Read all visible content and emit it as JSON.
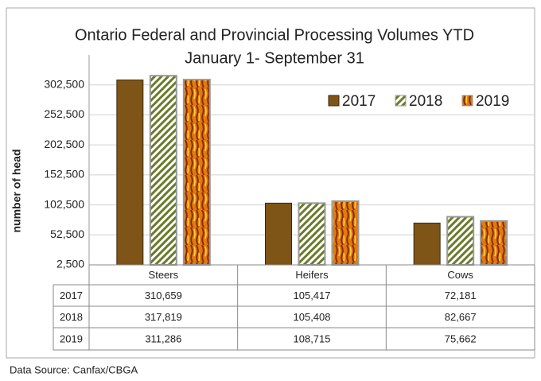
{
  "chart_data": {
    "type": "bar",
    "title": "Ontario Federal and Provincial  Processing Volumes YTD",
    "subtitle": "January 1- September 31",
    "y_label": "number of head",
    "source": "Data Source: Canfax/CBGA",
    "categories": [
      "Steers",
      "Heifers",
      "Cows"
    ],
    "series": [
      {
        "name": "2017",
        "color": "#7f5417",
        "values": [
          310659,
          105417,
          72181
        ],
        "value_labels": [
          "310,659",
          "105,417",
          "72,181"
        ]
      },
      {
        "name": "2018",
        "color": "#6b7a2a",
        "values": [
          317819,
          105408,
          82667
        ],
        "value_labels": [
          "317,819",
          "105,408",
          "82,667"
        ]
      },
      {
        "name": "2019",
        "color": "#e07b10",
        "values": [
          311286,
          108715,
          75662
        ],
        "value_labels": [
          "311,286",
          "108,715",
          "75,662"
        ]
      }
    ],
    "ylim": [
      2500,
      352500
    ],
    "yticks": [
      {
        "value": 2500,
        "label": "2,500"
      },
      {
        "value": 52500,
        "label": "52,500"
      },
      {
        "value": 102500,
        "label": "102,500"
      },
      {
        "value": 152500,
        "label": "152,500"
      },
      {
        "value": 202500,
        "label": "202,500"
      },
      {
        "value": 252500,
        "label": "252,500"
      },
      {
        "value": 302500,
        "label": "302,500"
      }
    ],
    "grid": true,
    "legend": "top-right"
  }
}
